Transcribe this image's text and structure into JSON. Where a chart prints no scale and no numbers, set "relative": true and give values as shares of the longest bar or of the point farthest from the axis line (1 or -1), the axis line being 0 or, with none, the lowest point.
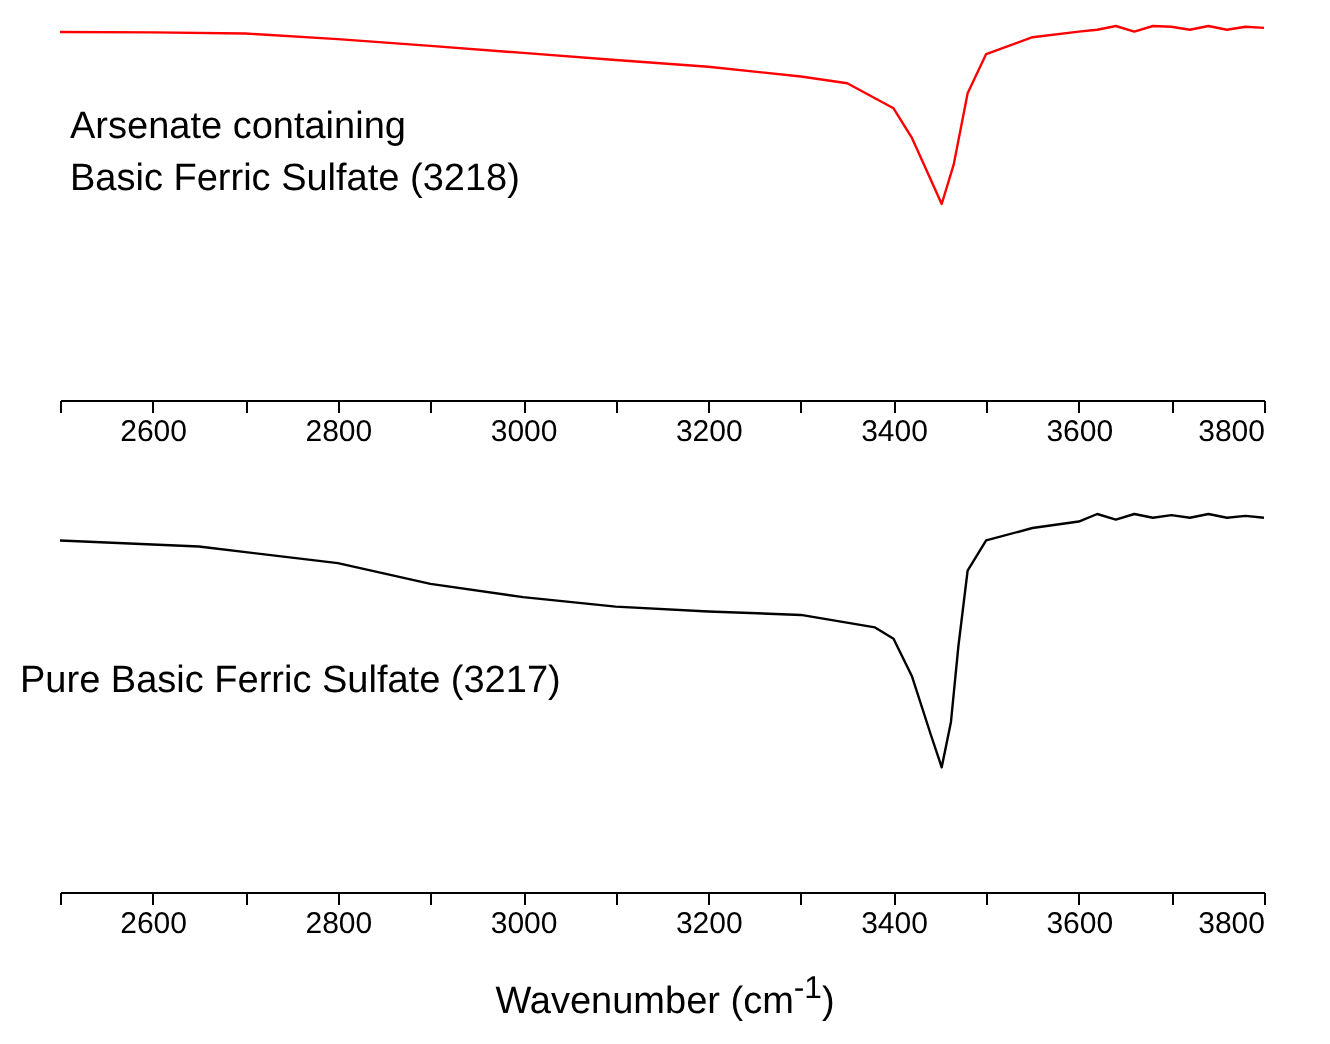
{
  "chart_data": [
    {
      "type": "line",
      "relative": true,
      "annotations": [
        "Arsenate containing\nBasic Ferric Sulfate (3218)"
      ],
      "xlim": [
        2500,
        3800
      ],
      "xticks": [
        {
          "value": 2500,
          "label": null
        },
        2600,
        {
          "value": 2700,
          "label": null
        },
        2800,
        {
          "value": 2900,
          "label": null
        },
        3000,
        {
          "value": 3100,
          "label": null
        },
        3200,
        {
          "value": 3300,
          "label": null
        },
        3400,
        {
          "value": 3500,
          "label": null
        },
        3600,
        {
          "value": 3700,
          "label": null
        },
        3800
      ],
      "x": [
        2500,
        2600,
        2700,
        2800,
        2900,
        3000,
        3100,
        3200,
        3300,
        3350,
        3400,
        3420,
        3440,
        3452,
        3465,
        3480,
        3500,
        3550,
        3600,
        3620,
        3640,
        3660,
        3680,
        3700,
        3720,
        3740,
        3760,
        3780,
        3800
      ],
      "series": [
        {
          "color": "#ff0000",
          "values": [
            0.984,
            0.983,
            0.98,
            0.965,
            0.947,
            0.928,
            0.909,
            0.891,
            0.865,
            0.847,
            0.78,
            0.7,
            0.59,
            0.524,
            0.63,
            0.82,
            0.925,
            0.97,
            0.985,
            0.99,
            1.0,
            0.985,
            1.0,
            0.998,
            0.99,
            1.0,
            0.99,
            0.998,
            0.995
          ]
        }
      ]
    },
    {
      "type": "line",
      "relative": true,
      "annotations": [
        "Pure Basic Ferric Sulfate (3217)"
      ],
      "xlabel": "Wavenumber (cm$^{-1}$)",
      "xlim": [
        2500,
        3800
      ],
      "xticks": [
        {
          "value": 2500,
          "label": null
        },
        2600,
        {
          "value": 2700,
          "label": null
        },
        2800,
        {
          "value": 2900,
          "label": null
        },
        3000,
        {
          "value": 3100,
          "label": null
        },
        3200,
        {
          "value": 3300,
          "label": null
        },
        3400,
        {
          "value": 3500,
          "label": null
        },
        3600,
        {
          "value": 3700,
          "label": null
        },
        3800
      ],
      "x": [
        2500,
        2650,
        2800,
        2900,
        3000,
        3100,
        3200,
        3300,
        3380,
        3400,
        3420,
        3440,
        3452,
        3462,
        3470,
        3480,
        3500,
        3550,
        3600,
        3620,
        3640,
        3660,
        3680,
        3700,
        3720,
        3740,
        3760,
        3780,
        3800
      ],
      "series": [
        {
          "color": "#000000",
          "values": [
            0.93,
            0.914,
            0.87,
            0.815,
            0.78,
            0.755,
            0.742,
            0.733,
            0.7,
            0.67,
            0.57,
            0.418,
            0.33,
            0.45,
            0.65,
            0.85,
            0.93,
            0.963,
            0.98,
            1.0,
            0.985,
            1.0,
            0.99,
            0.997,
            0.99,
            1.0,
            0.99,
            0.995,
            0.99
          ]
        }
      ]
    }
  ]
}
